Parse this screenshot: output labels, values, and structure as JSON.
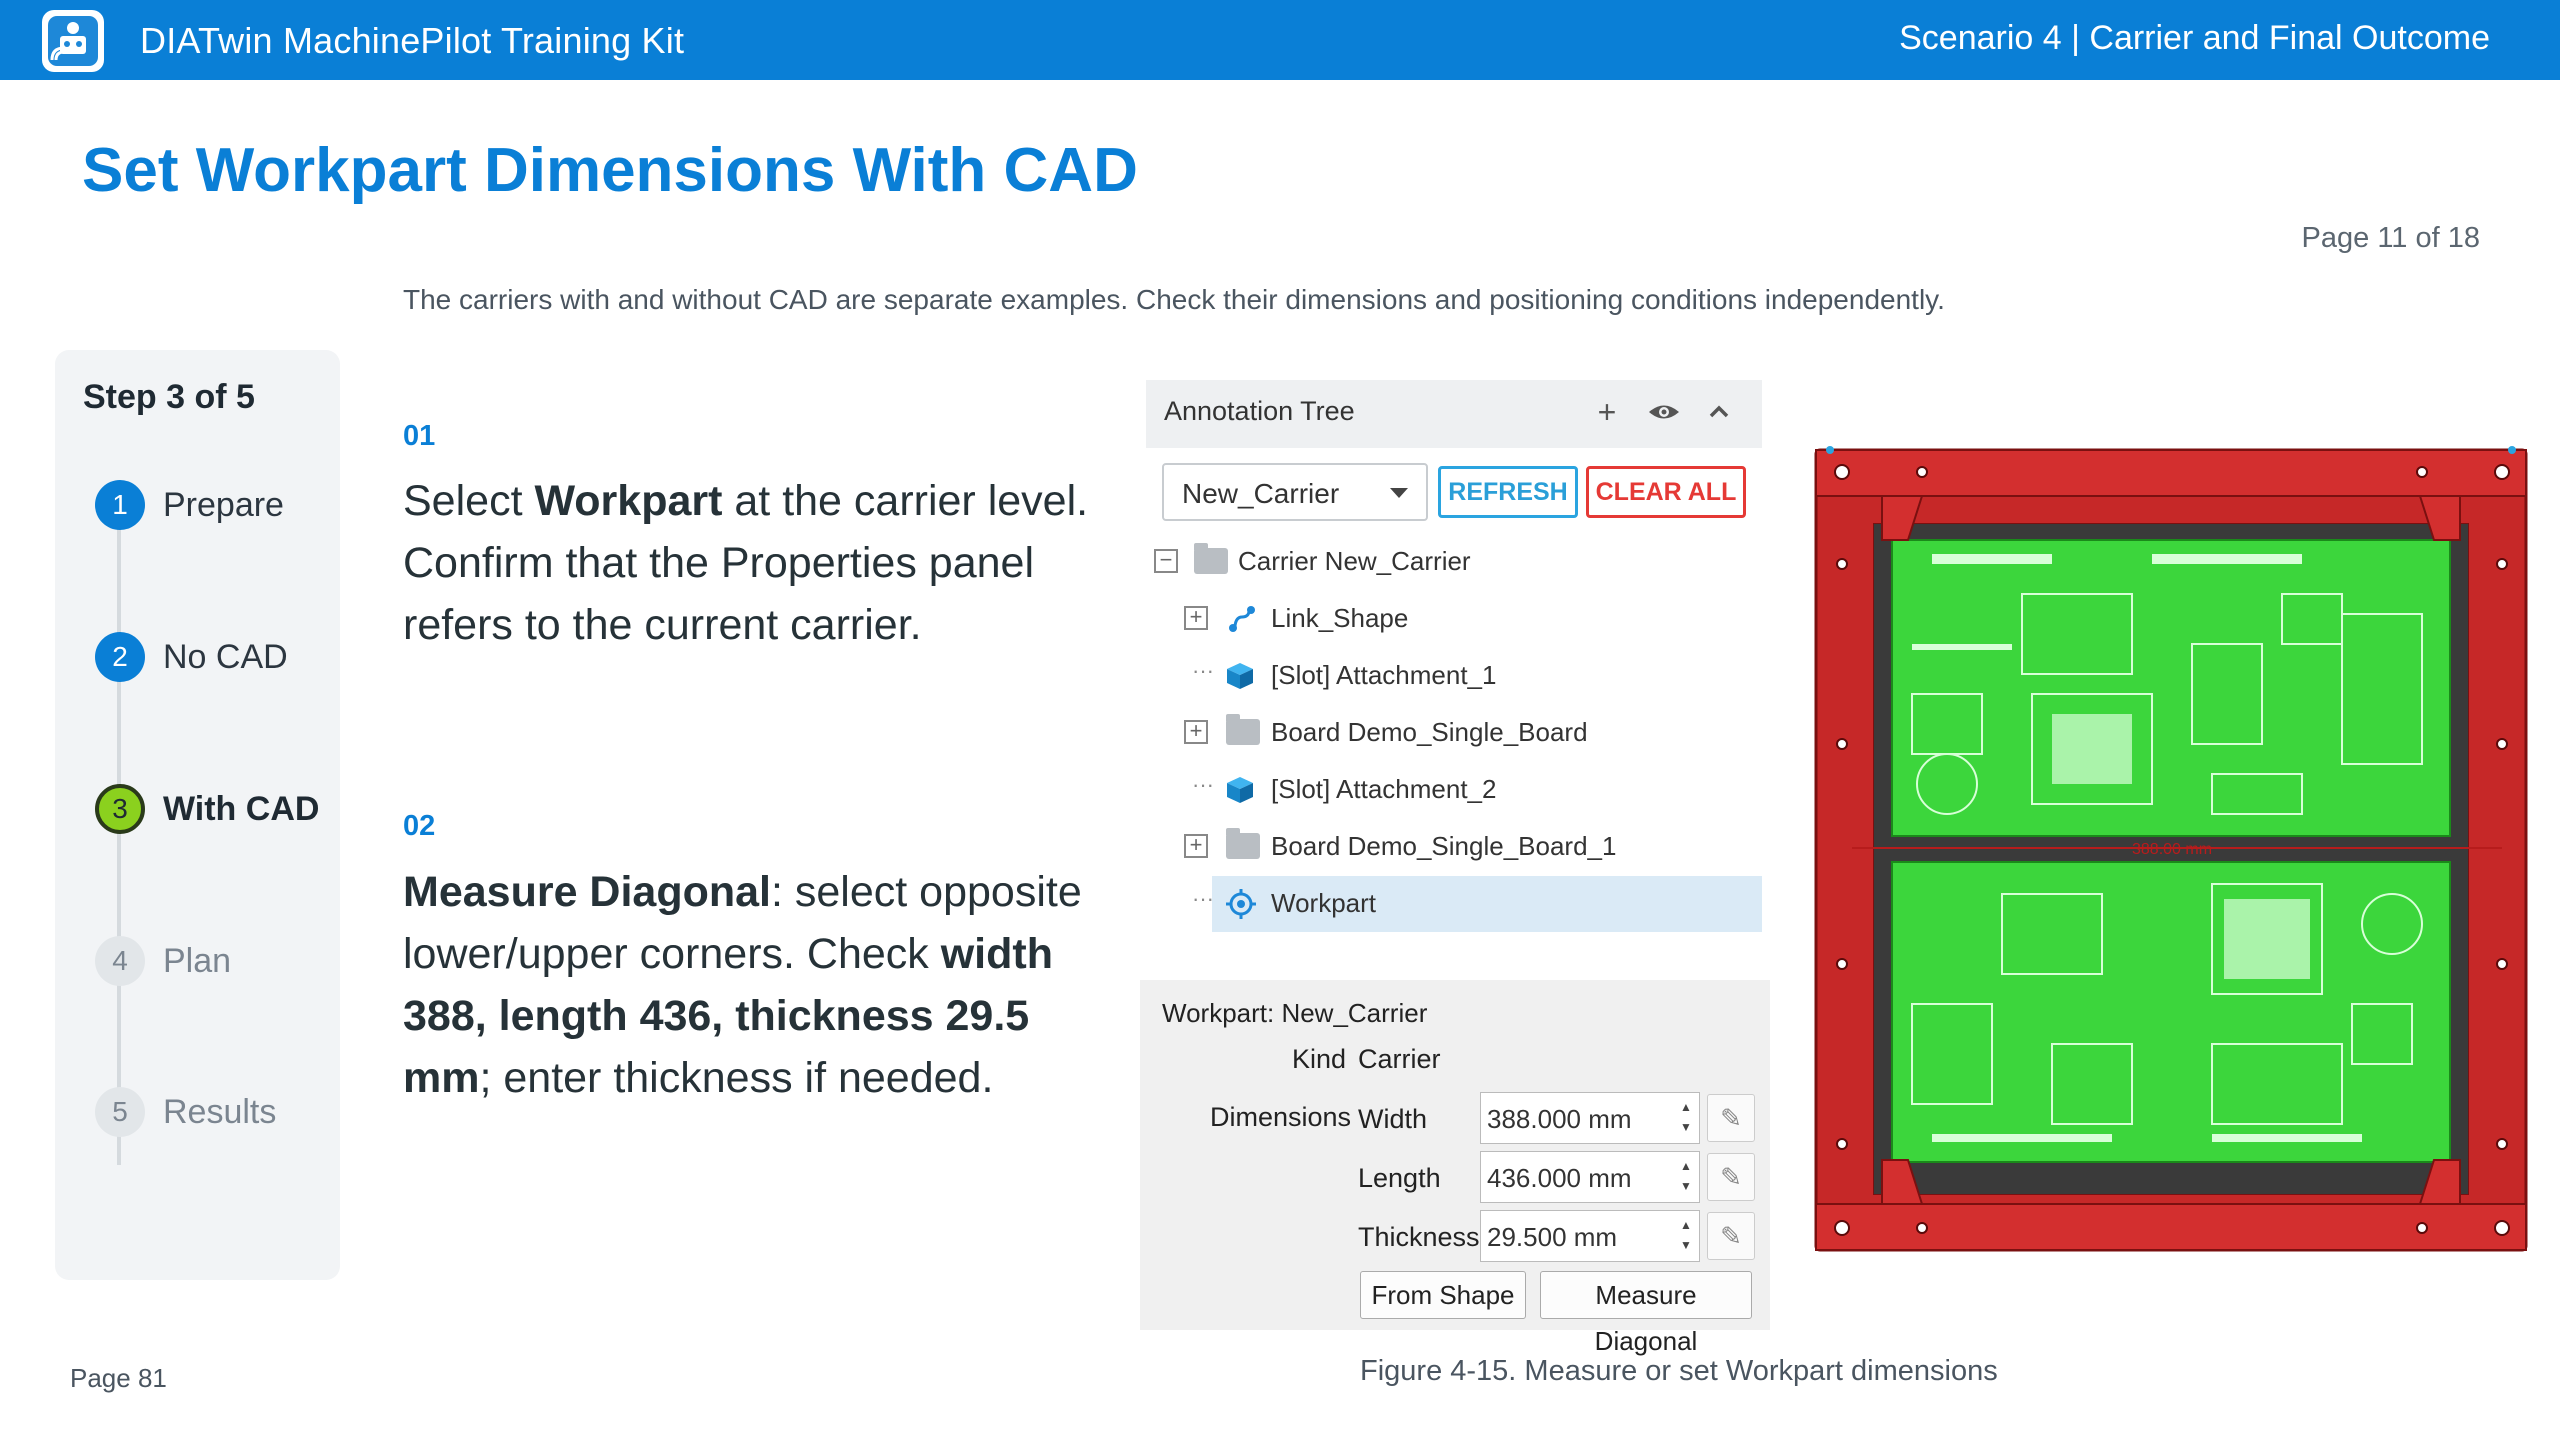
{
  "header": {
    "app_title": "DIATwin MachinePilot Training Kit",
    "scenario": "Scenario 4 | Carrier and Final Outcome",
    "logo_icon": "robot-arm-icon",
    "brand_color": "#0a7fd6"
  },
  "page": {
    "title": "Set Workpart Dimensions With CAD",
    "page_count": "Page 11 of 18",
    "intro": "The carriers with and without CAD are separate examples. Check their dimensions and positioning conditions independently."
  },
  "stepper": {
    "heading": "Step 3 of 5",
    "steps": [
      {
        "num": "1",
        "label": "Prepare",
        "state": "done"
      },
      {
        "num": "2",
        "label": "No CAD",
        "state": "done"
      },
      {
        "num": "3",
        "label": "With CAD",
        "state": "current"
      },
      {
        "num": "4",
        "label": "Plan",
        "state": "todo"
      },
      {
        "num": "5",
        "label": "Results",
        "state": "todo"
      }
    ]
  },
  "instructions": [
    {
      "num": "01",
      "parts": [
        {
          "t": "Select ",
          "b": false
        },
        {
          "t": "Workpart",
          "b": true
        },
        {
          "t": " at the carrier level. Confirm that the Properties panel refers to the current carrier.",
          "b": false
        }
      ]
    },
    {
      "num": "02",
      "parts": [
        {
          "t": "Measure Diagonal",
          "b": true
        },
        {
          "t": ": select opposite lower/upper corners. Check ",
          "b": false
        },
        {
          "t": "width 388, length 436, thickness 29.5 mm",
          "b": true
        },
        {
          "t": "; enter thickness if needed.",
          "b": false
        }
      ]
    }
  ],
  "annotation_tree": {
    "title": "Annotation Tree",
    "header_icons": [
      "plus-icon",
      "eye-icon",
      "chevron-up-icon"
    ],
    "dropdown_value": "New_Carrier",
    "refresh_label": "REFRESH",
    "clear_all_label": "CLEAR ALL",
    "items": [
      {
        "label": "Carrier  New_Carrier",
        "icon": "folder-icon",
        "expander": "minus"
      },
      {
        "label": "Link_Shape",
        "icon": "link-shape-icon",
        "expander": "plus"
      },
      {
        "label": "[Slot] Attachment_1",
        "icon": "cube-icon",
        "expander": "dots"
      },
      {
        "label": "Board  Demo_Single_Board",
        "icon": "folder-icon",
        "expander": "plus"
      },
      {
        "label": "[Slot] Attachment_2",
        "icon": "cube-icon",
        "expander": "dots"
      },
      {
        "label": "Board  Demo_Single_Board_1",
        "icon": "folder-icon",
        "expander": "plus"
      },
      {
        "label": "Workpart",
        "icon": "workpart-icon",
        "expander": "dots",
        "selected": true
      }
    ]
  },
  "properties": {
    "header": "Workpart: New_Carrier",
    "kind_label": "Kind",
    "kind_value": "Carrier",
    "dimensions_label": "Dimensions",
    "width_label": "Width",
    "width_value": "388.000 mm",
    "length_label": "Length",
    "length_value": "436.000 mm",
    "thickness_label": "Thickness",
    "thickness_value": "29.500 mm",
    "from_shape_label": "From Shape",
    "measure_diagonal_label": "Measure Diagonal"
  },
  "cad_view": {
    "dimension_label": "388.00 mm",
    "frame_color": "#c62828",
    "board_color": "#3cd63c"
  },
  "figure_caption": "Figure 4-15. Measure or set Workpart dimensions",
  "footer": "Page 81"
}
